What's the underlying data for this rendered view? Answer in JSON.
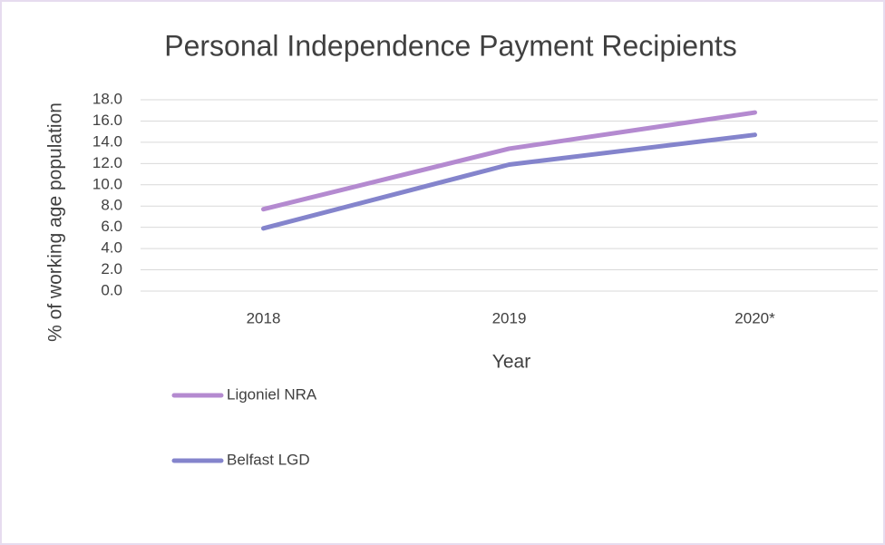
{
  "chart_data": {
    "type": "line",
    "title": "Personal Independence Payment Recipients",
    "x_label": "Year",
    "y_label": "% of working age population",
    "categories": [
      "2018",
      "2019",
      "2020*"
    ],
    "series": [
      {
        "name": "Ligoniel NRA",
        "color": "#b48ad0",
        "values": [
          7.7,
          13.4,
          16.8
        ]
      },
      {
        "name": "Belfast LGD",
        "color": "#8484cc",
        "values": [
          5.9,
          11.9,
          14.7
        ]
      }
    ],
    "ylim": [
      0,
      18
    ],
    "yticks": [
      {
        "value": 0,
        "label": "0.0"
      },
      {
        "value": 2,
        "label": "2.0"
      },
      {
        "value": 4,
        "label": "4.0"
      },
      {
        "value": 6,
        "label": "6.0"
      },
      {
        "value": 8,
        "label": "8.0"
      },
      {
        "value": 10,
        "label": "10.0"
      },
      {
        "value": 12,
        "label": "12.0"
      },
      {
        "value": 14,
        "label": "14.0"
      },
      {
        "value": 16,
        "label": "16.0"
      },
      {
        "value": 18,
        "label": "18.0"
      }
    ],
    "grid": true
  }
}
